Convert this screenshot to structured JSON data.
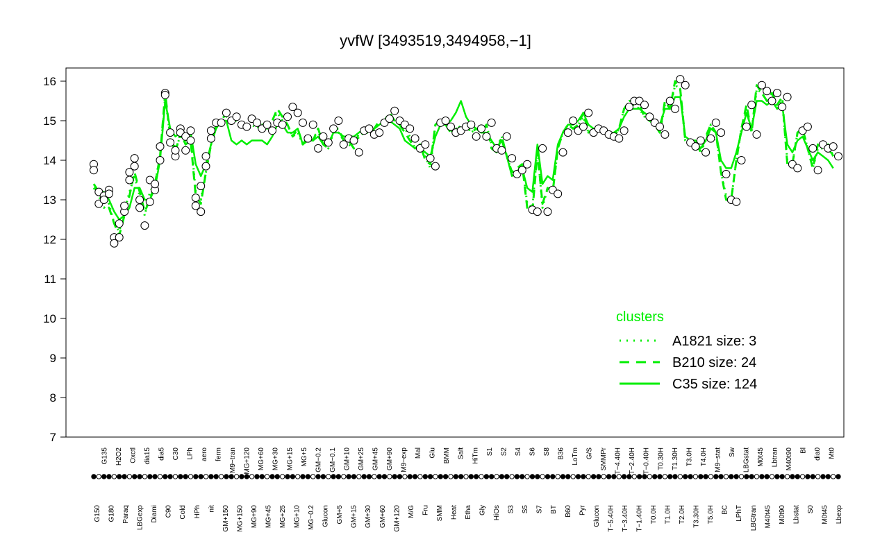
{
  "chart_data": {
    "type": "line",
    "title": "yvfW [3493519,3494958,−1]",
    "xlabel": "",
    "ylabel": "",
    "ylim": [
      7,
      16
    ],
    "yticks": [
      7,
      8,
      9,
      10,
      11,
      12,
      13,
      14,
      15,
      16
    ],
    "xlabels_shown": [
      "G150",
      "G135",
      "G180",
      "H2O2",
      "Paraq",
      "Oxctl",
      "LBGexp",
      "dia15",
      "Diami",
      "dia5",
      "C90",
      "C30",
      "Cold",
      "LPh",
      "HPh",
      "aero",
      "nit",
      "ferm",
      "GM+150",
      "M9−tran",
      "MG+150",
      "MG+120",
      "MG+90",
      "MG+60",
      "MG+45",
      "MG+30",
      "MG+25",
      "MG+15",
      "MG+10",
      "MG+5",
      "MG−0.2",
      "GM−0.2",
      "Glucon",
      "GM−0.1",
      "GM+5",
      "GM+10",
      "GM+15",
      "GM+25",
      "GM+30",
      "GM+45",
      "GM+60",
      "GM+90",
      "GM+120",
      "M9−exp",
      "M/G",
      "Mal",
      "Fru",
      "Glu",
      "SMM",
      "BMM",
      "Heat",
      "Salt",
      "Etha",
      "HiTm",
      "Gly",
      "S1",
      "HiOs",
      "S2",
      "S3",
      "S4",
      "S5",
      "S6",
      "S7",
      "S8",
      "BT",
      "B36",
      "B60",
      "LoTm",
      "Pyr",
      "G/S",
      "Glucon",
      "SMMPr",
      "T−5.40H",
      "T−4.40H",
      "T−3.40H",
      "T−2.40H",
      "T−1.40H",
      "T−0.40H",
      "T0.0H",
      "T0.30H",
      "T1.0H",
      "T1.30H",
      "T2.0H",
      "T3.0H",
      "T3.30H",
      "T4.0H",
      "T5.0H",
      "M9−stat",
      "BC",
      "Sw",
      "LPhT",
      "LBGstat",
      "LBGtran",
      "M0t45",
      "M40t45",
      "Lbtran",
      "M0t90",
      "M40t90",
      "Lbstat",
      "Bl",
      "S0",
      "dia0",
      "M0t45",
      "Mt0",
      "Lbexp"
    ],
    "points": [
      [
        0,
        13.9
      ],
      [
        0,
        13.75
      ],
      [
        1,
        13.2
      ],
      [
        1,
        12.9
      ],
      [
        2,
        13.1
      ],
      [
        2,
        13.0
      ],
      [
        3,
        13.25
      ],
      [
        3,
        13.15
      ],
      [
        4,
        12.05
      ],
      [
        4,
        11.9
      ],
      [
        5,
        12.05
      ],
      [
        5,
        12.4
      ],
      [
        6,
        12.7
      ],
      [
        6,
        12.85
      ],
      [
        7,
        13.5
      ],
      [
        7,
        13.7
      ],
      [
        8,
        14.05
      ],
      [
        8,
        13.85
      ],
      [
        9,
        13.0
      ],
      [
        9,
        12.8
      ],
      [
        10,
        12.35
      ],
      [
        11,
        12.95
      ],
      [
        11,
        13.5
      ],
      [
        12,
        13.25
      ],
      [
        12,
        13.4
      ],
      [
        13,
        14.0
      ],
      [
        13,
        14.35
      ],
      [
        14,
        15.7
      ],
      [
        14,
        15.65
      ],
      [
        15,
        14.7
      ],
      [
        15,
        14.45
      ],
      [
        16,
        14.1
      ],
      [
        16,
        14.25
      ],
      [
        17,
        14.8
      ],
      [
        17,
        14.7
      ],
      [
        18,
        14.25
      ],
      [
        18,
        14.6
      ],
      [
        19,
        14.75
      ],
      [
        19,
        14.5
      ],
      [
        20,
        13.05
      ],
      [
        20,
        12.85
      ],
      [
        21,
        12.7
      ],
      [
        21,
        13.35
      ],
      [
        22,
        13.85
      ],
      [
        22,
        14.1
      ],
      [
        23,
        14.55
      ],
      [
        23,
        14.75
      ],
      [
        24,
        14.95
      ],
      [
        25,
        14.95
      ],
      [
        26,
        15.2
      ],
      [
        27,
        15.0
      ],
      [
        28,
        15.1
      ],
      [
        29,
        14.9
      ],
      [
        30,
        14.85
      ],
      [
        31,
        15.05
      ],
      [
        32,
        14.95
      ],
      [
        33,
        14.8
      ],
      [
        34,
        14.9
      ],
      [
        35,
        14.75
      ],
      [
        36,
        14.95
      ],
      [
        37,
        14.9
      ],
      [
        38,
        15.1
      ],
      [
        39,
        15.35
      ],
      [
        40,
        15.2
      ],
      [
        41,
        14.95
      ],
      [
        42,
        14.55
      ],
      [
        43,
        14.9
      ],
      [
        44,
        14.3
      ],
      [
        45,
        14.6
      ],
      [
        46,
        14.45
      ],
      [
        47,
        14.8
      ],
      [
        48,
        15.0
      ],
      [
        49,
        14.4
      ],
      [
        50,
        14.55
      ],
      [
        51,
        14.5
      ],
      [
        52,
        14.2
      ],
      [
        53,
        14.75
      ],
      [
        54,
        14.8
      ],
      [
        55,
        14.65
      ],
      [
        56,
        14.7
      ],
      [
        57,
        14.95
      ],
      [
        58,
        15.05
      ],
      [
        59,
        15.25
      ],
      [
        60,
        15.0
      ],
      [
        61,
        14.9
      ],
      [
        62,
        14.8
      ],
      [
        63,
        14.55
      ],
      [
        64,
        14.3
      ],
      [
        65,
        14.4
      ],
      [
        66,
        14.05
      ],
      [
        67,
        13.85
      ],
      [
        68,
        14.95
      ],
      [
        69,
        15.0
      ],
      [
        70,
        14.85
      ],
      [
        71,
        14.7
      ],
      [
        72,
        14.75
      ],
      [
        73,
        14.85
      ],
      [
        74,
        14.9
      ],
      [
        75,
        14.6
      ],
      [
        76,
        14.8
      ],
      [
        77,
        14.6
      ],
      [
        78,
        14.95
      ],
      [
        79,
        14.3
      ],
      [
        80,
        14.25
      ],
      [
        81,
        14.6
      ],
      [
        82,
        14.05
      ],
      [
        83,
        13.65
      ],
      [
        84,
        13.75
      ],
      [
        85,
        13.9
      ],
      [
        86,
        12.75
      ],
      [
        87,
        12.7
      ],
      [
        88,
        14.3
      ],
      [
        89,
        12.7
      ],
      [
        90,
        13.25
      ],
      [
        91,
        13.15
      ],
      [
        92,
        14.2
      ],
      [
        93,
        14.7
      ],
      [
        94,
        15.0
      ],
      [
        95,
        14.75
      ],
      [
        96,
        14.85
      ],
      [
        97,
        15.2
      ],
      [
        98,
        14.7
      ],
      [
        99,
        14.8
      ],
      [
        100,
        14.75
      ],
      [
        101,
        14.65
      ],
      [
        102,
        14.6
      ],
      [
        103,
        14.55
      ],
      [
        104,
        14.75
      ],
      [
        105,
        15.35
      ],
      [
        106,
        15.5
      ],
      [
        107,
        15.5
      ],
      [
        108,
        15.4
      ],
      [
        109,
        15.1
      ],
      [
        110,
        14.95
      ],
      [
        111,
        14.85
      ],
      [
        112,
        14.65
      ],
      [
        113,
        15.5
      ],
      [
        114,
        15.3
      ],
      [
        115,
        16.05
      ],
      [
        116,
        15.9
      ],
      [
        117,
        14.45
      ],
      [
        118,
        14.35
      ],
      [
        119,
        14.5
      ],
      [
        120,
        14.2
      ],
      [
        121,
        14.55
      ],
      [
        122,
        14.95
      ],
      [
        123,
        14.7
      ],
      [
        124,
        13.65
      ],
      [
        125,
        13.0
      ],
      [
        126,
        12.95
      ],
      [
        127,
        14.0
      ],
      [
        128,
        14.85
      ],
      [
        129,
        15.4
      ],
      [
        130,
        14.65
      ],
      [
        131,
        15.9
      ],
      [
        132,
        15.75
      ],
      [
        133,
        15.5
      ],
      [
        134,
        15.7
      ],
      [
        135,
        15.35
      ],
      [
        136,
        15.6
      ],
      [
        137,
        13.9
      ],
      [
        138,
        13.8
      ],
      [
        139,
        14.75
      ],
      [
        140,
        14.85
      ],
      [
        141,
        14.3
      ],
      [
        142,
        13.75
      ],
      [
        143,
        14.4
      ],
      [
        144,
        14.3
      ],
      [
        145,
        14.35
      ],
      [
        146,
        14.1
      ]
    ],
    "series": [
      {
        "name": "A1821 size: 3",
        "style": "dotted",
        "values": [
          13.3,
          13.1,
          12.8,
          12.9,
          12.4,
          12.2,
          12.7,
          13.2,
          13.6,
          13.1,
          12.6,
          13.2,
          13.4,
          14.1,
          15.6,
          14.6,
          14.3,
          14.6,
          14.5,
          14.6,
          13.2,
          13.0,
          13.7,
          14.4,
          14.9,
          15.0,
          15.1,
          15.0,
          15.0,
          14.9,
          14.8,
          14.9,
          14.8,
          14.9,
          14.8,
          15.0,
          15.2,
          15.0,
          14.9,
          14.6,
          14.7,
          14.4,
          14.5,
          14.6,
          14.7,
          14.5,
          14.3,
          14.7,
          14.7,
          14.5,
          14.4,
          14.3,
          14.6,
          14.7,
          14.7,
          14.8,
          14.9,
          15.0,
          15.1,
          15.0,
          14.9,
          14.8,
          14.6,
          14.3,
          14.4,
          14.1,
          13.8,
          14.9,
          14.9,
          14.9,
          14.7,
          14.8,
          14.8,
          14.9,
          14.7,
          14.8,
          14.7,
          14.9,
          14.4,
          14.3,
          14.6,
          14.1,
          13.7,
          13.7,
          13.9,
          12.9,
          12.8,
          14.3,
          12.8,
          13.3,
          13.2,
          14.3,
          14.7,
          14.9,
          14.8,
          14.9,
          15.1,
          14.7,
          14.8,
          14.8,
          14.7,
          14.6,
          14.6,
          14.8,
          15.3,
          15.4,
          15.4,
          15.3,
          15.1,
          15.0,
          14.9,
          14.7,
          15.4,
          15.3,
          15.9,
          15.8,
          14.5,
          14.4,
          14.5,
          14.2,
          14.5,
          14.9,
          14.7,
          13.7,
          13.1,
          13.0,
          14.0,
          14.8,
          15.3,
          14.7,
          15.8,
          15.7,
          15.5,
          15.6,
          15.3,
          15.5,
          14.0,
          13.9,
          14.7,
          14.8,
          14.3,
          13.8,
          14.3,
          14.3,
          14.3,
          14.1
        ]
      },
      {
        "name": "B210 size: 24",
        "style": "dashed",
        "values": [
          13.4,
          13.2,
          12.9,
          12.8,
          12.4,
          12.1,
          12.6,
          13.1,
          13.7,
          13.2,
          12.7,
          13.0,
          13.4,
          14.1,
          15.7,
          14.6,
          14.2,
          14.7,
          14.4,
          14.5,
          13.1,
          12.9,
          13.7,
          14.4,
          14.9,
          15.0,
          15.2,
          15.0,
          15.1,
          14.9,
          14.9,
          15.0,
          14.9,
          14.8,
          14.9,
          15.0,
          15.3,
          15.1,
          14.9,
          14.6,
          14.8,
          14.4,
          14.6,
          14.5,
          14.8,
          14.4,
          14.3,
          14.8,
          14.8,
          14.5,
          14.5,
          14.3,
          14.7,
          14.8,
          14.7,
          14.8,
          15.0,
          15.0,
          15.2,
          15.0,
          14.9,
          14.7,
          14.5,
          14.3,
          14.4,
          14.0,
          13.9,
          14.9,
          15.0,
          14.9,
          14.7,
          14.7,
          14.9,
          14.9,
          14.7,
          14.8,
          14.7,
          14.9,
          14.3,
          14.2,
          14.6,
          14.1,
          13.7,
          13.8,
          13.9,
          12.8,
          12.7,
          14.2,
          12.9,
          13.3,
          13.2,
          14.3,
          14.7,
          14.9,
          14.8,
          14.9,
          15.2,
          14.7,
          14.8,
          14.8,
          14.7,
          14.6,
          14.6,
          14.8,
          15.3,
          15.5,
          15.5,
          15.4,
          15.1,
          15.0,
          14.9,
          14.7,
          15.5,
          15.3,
          16.0,
          15.8,
          14.5,
          14.4,
          14.5,
          14.2,
          14.6,
          14.9,
          14.7,
          13.7,
          13.0,
          13.0,
          14.0,
          14.8,
          15.4,
          14.7,
          15.9,
          15.7,
          15.5,
          15.7,
          15.4,
          15.6,
          13.9,
          13.9,
          14.7,
          14.8,
          14.3,
          13.8,
          14.4,
          14.3,
          14.4,
          14.1
        ]
      },
      {
        "name": "C35 size: 124",
        "style": "solid",
        "values": [
          13.3,
          13.2,
          13.2,
          13.0,
          12.7,
          12.5,
          12.6,
          12.8,
          13.3,
          13.3,
          13.0,
          13.0,
          13.3,
          14.0,
          15.5,
          14.8,
          14.6,
          14.7,
          14.6,
          14.7,
          13.9,
          13.6,
          13.9,
          14.4,
          14.8,
          15.0,
          15.0,
          14.5,
          14.4,
          14.5,
          14.4,
          14.5,
          14.5,
          14.5,
          14.4,
          14.6,
          14.9,
          14.9,
          14.7,
          14.7,
          14.8,
          14.4,
          14.5,
          14.5,
          14.6,
          14.4,
          14.4,
          14.7,
          14.7,
          14.6,
          14.6,
          14.6,
          14.7,
          14.8,
          14.8,
          14.8,
          14.9,
          15.0,
          15.0,
          14.9,
          14.8,
          14.5,
          14.4,
          14.3,
          14.3,
          14.2,
          14.1,
          14.6,
          14.9,
          14.9,
          15.0,
          15.2,
          15.5,
          15.1,
          14.9,
          14.8,
          14.7,
          14.7,
          14.5,
          14.3,
          14.5,
          14.1,
          13.6,
          13.7,
          13.8,
          13.3,
          13.2,
          14.4,
          13.4,
          13.6,
          13.5,
          14.4,
          14.7,
          14.9,
          14.9,
          15.0,
          15.2,
          14.9,
          14.8,
          14.8,
          14.8,
          14.7,
          14.7,
          14.8,
          15.1,
          15.3,
          15.3,
          15.3,
          15.2,
          15.1,
          15.0,
          14.9,
          15.3,
          15.3,
          15.6,
          15.6,
          14.6,
          14.5,
          14.5,
          14.3,
          14.5,
          14.8,
          14.7,
          14.0,
          13.8,
          13.8,
          14.2,
          14.7,
          15.2,
          14.8,
          15.5,
          15.5,
          15.4,
          15.5,
          15.3,
          15.4,
          14.4,
          14.2,
          14.5,
          14.6,
          14.3,
          14.0,
          14.2,
          14.1,
          14.0,
          13.8
        ]
      }
    ],
    "legend": {
      "title": "clusters",
      "position": "bottom-right",
      "color": "#00ee00",
      "entries": [
        "A1821 size: 3",
        "B210 size: 24",
        "C35 size: 124"
      ]
    },
    "line_color": "#00ee00",
    "grid": false
  }
}
